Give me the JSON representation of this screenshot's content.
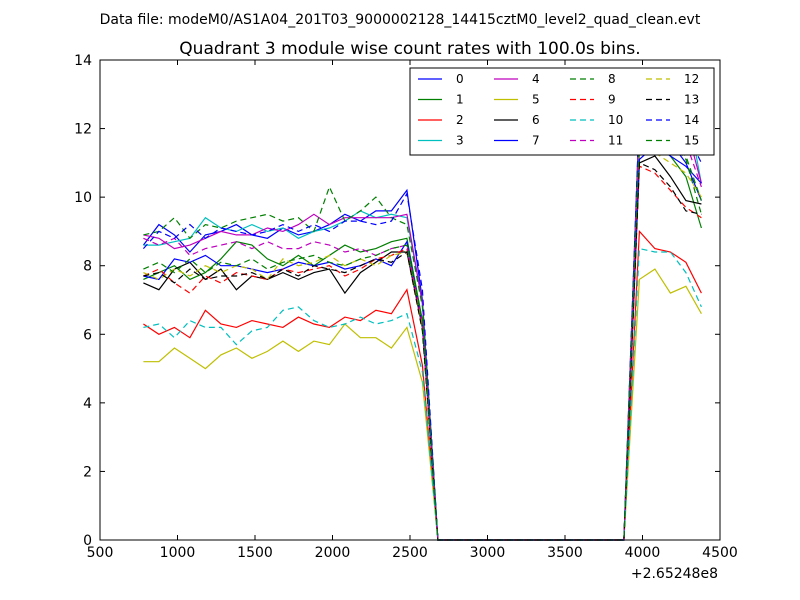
{
  "suptitle": "Data file: modeM0/AS1A04_201T03_9000002128_14415cztM0_level2_quad_clean.evt",
  "chart_data": {
    "type": "line",
    "title": "Quadrant 3 module wise count rates with 100.0s bins.",
    "xlabel": "",
    "ylabel": "",
    "x_offset_label": "+2.65248e8",
    "xlim": [
      500,
      4500
    ],
    "ylim": [
      0,
      14
    ],
    "xticks": [
      500,
      1000,
      1500,
      2000,
      2500,
      3000,
      3500,
      4000,
      4500
    ],
    "yticks": [
      0,
      2,
      4,
      6,
      8,
      10,
      12,
      14
    ],
    "grid": false,
    "legend_position": "top-right",
    "legend_columns": 4,
    "x": [
      780,
      880,
      980,
      1080,
      1180,
      1280,
      1380,
      1480,
      1580,
      1680,
      1780,
      1880,
      1980,
      2080,
      2180,
      2280,
      2380,
      2480,
      2580,
      2680,
      2780,
      2880,
      2980,
      3080,
      3180,
      3280,
      3380,
      3480,
      3580,
      3680,
      3780,
      3880,
      3980,
      4080,
      4180,
      4280,
      4380
    ],
    "series": [
      {
        "name": "0",
        "color": "#0000ff",
        "dash": "solid",
        "values": [
          8.6,
          9.2,
          8.9,
          8.4,
          8.9,
          9.0,
          9.2,
          8.9,
          8.8,
          9.1,
          8.9,
          9.0,
          9.2,
          9.5,
          9.3,
          9.6,
          9.6,
          10.2,
          7.0,
          0,
          0,
          0,
          0,
          0,
          0,
          0,
          0,
          0,
          0,
          0,
          0,
          0,
          11.3,
          11.8,
          11.6,
          11.0,
          9.9
        ]
      },
      {
        "name": "1",
        "color": "#007f00",
        "dash": "solid",
        "values": [
          7.6,
          7.8,
          8.0,
          7.6,
          7.8,
          8.2,
          8.7,
          8.6,
          8.2,
          8.0,
          8.3,
          8.0,
          8.3,
          8.6,
          8.4,
          8.5,
          8.7,
          8.8,
          6.4,
          0,
          0,
          0,
          0,
          0,
          0,
          0,
          0,
          0,
          0,
          0,
          0,
          0,
          11.6,
          11.5,
          11.2,
          10.6,
          9.1
        ]
      },
      {
        "name": "2",
        "color": "#ff0000",
        "dash": "solid",
        "values": [
          6.3,
          6.0,
          6.2,
          5.9,
          6.7,
          6.3,
          6.2,
          6.4,
          6.3,
          6.2,
          6.5,
          6.3,
          6.2,
          6.5,
          6.4,
          6.7,
          6.6,
          7.3,
          5.1,
          0,
          0,
          0,
          0,
          0,
          0,
          0,
          0,
          0,
          0,
          0,
          0,
          0,
          9.0,
          8.5,
          8.4,
          8.1,
          7.2
        ]
      },
      {
        "name": "3",
        "color": "#00bfbf",
        "dash": "solid",
        "values": [
          8.6,
          8.6,
          8.7,
          8.8,
          9.4,
          9.1,
          9.0,
          9.2,
          9.0,
          9.1,
          8.8,
          9.0,
          9.1,
          9.3,
          9.6,
          9.4,
          9.5,
          9.4,
          6.9,
          0,
          0,
          0,
          0,
          0,
          0,
          0,
          0,
          0,
          0,
          0,
          0,
          0,
          12.0,
          12.6,
          12.1,
          12.8,
          10.4
        ]
      },
      {
        "name": "4",
        "color": "#bf00bf",
        "dash": "solid",
        "values": [
          8.9,
          8.8,
          8.5,
          8.6,
          8.8,
          9.0,
          8.9,
          8.9,
          9.1,
          9.0,
          9.2,
          9.5,
          9.2,
          9.4,
          9.4,
          9.4,
          9.4,
          9.5,
          6.9,
          0,
          0,
          0,
          0,
          0,
          0,
          0,
          0,
          0,
          0,
          0,
          0,
          0,
          12.5,
          12.2,
          12.0,
          12.1,
          10.4
        ]
      },
      {
        "name": "5",
        "color": "#bfbf00",
        "dash": "solid",
        "values": [
          5.2,
          5.2,
          5.6,
          5.3,
          5.0,
          5.4,
          5.6,
          5.3,
          5.5,
          5.8,
          5.5,
          5.8,
          5.7,
          6.3,
          5.9,
          5.9,
          5.6,
          6.2,
          4.6,
          0,
          0,
          0,
          0,
          0,
          0,
          0,
          0,
          0,
          0,
          0,
          0,
          0,
          7.6,
          7.9,
          7.2,
          7.4,
          6.6
        ]
      },
      {
        "name": "6",
        "color": "#000000",
        "dash": "solid",
        "values": [
          7.5,
          7.3,
          7.9,
          8.1,
          7.6,
          7.9,
          7.3,
          7.7,
          7.6,
          7.8,
          7.6,
          7.8,
          7.9,
          7.2,
          7.8,
          8.1,
          8.4,
          8.4,
          6.2,
          0,
          0,
          0,
          0,
          0,
          0,
          0,
          0,
          0,
          0,
          0,
          0,
          0,
          11.0,
          11.2,
          10.6,
          9.9,
          9.8
        ]
      },
      {
        "name": "7",
        "color": "#0000ff",
        "dash": "solid",
        "values": [
          7.7,
          7.6,
          8.2,
          8.1,
          8.3,
          8.0,
          8.0,
          7.9,
          7.8,
          7.9,
          8.1,
          8.0,
          8.1,
          7.9,
          8.0,
          8.2,
          8.0,
          8.7,
          6.3,
          0,
          0,
          0,
          0,
          0,
          0,
          0,
          0,
          0,
          0,
          0,
          0,
          0,
          11.1,
          11.5,
          11.2,
          10.9,
          10.4
        ]
      },
      {
        "name": "8",
        "color": "#007f00",
        "dash": "dashed",
        "values": [
          8.9,
          9.0,
          9.4,
          8.8,
          9.2,
          9.1,
          9.3,
          9.4,
          9.5,
          9.3,
          9.4,
          9.0,
          10.3,
          9.3,
          9.6,
          10.0,
          9.4,
          9.2,
          6.8,
          0,
          0,
          0,
          0,
          0,
          0,
          0,
          0,
          0,
          0,
          0,
          0,
          0,
          12.4,
          12.0,
          11.6,
          11.1,
          9.5
        ]
      },
      {
        "name": "9",
        "color": "#ff0000",
        "dash": "dashed",
        "values": [
          7.7,
          7.9,
          7.5,
          7.2,
          7.7,
          7.5,
          7.8,
          7.7,
          7.6,
          7.9,
          7.8,
          7.9,
          8.0,
          7.7,
          7.9,
          8.2,
          8.3,
          8.5,
          6.2,
          0,
          0,
          0,
          0,
          0,
          0,
          0,
          0,
          0,
          0,
          0,
          0,
          0,
          10.9,
          10.7,
          10.2,
          9.7,
          9.4
        ]
      },
      {
        "name": "10",
        "color": "#00bfbf",
        "dash": "dashed",
        "values": [
          6.2,
          6.3,
          5.9,
          6.4,
          6.2,
          6.2,
          5.7,
          6.1,
          6.2,
          6.7,
          6.8,
          6.4,
          6.2,
          6.3,
          6.5,
          6.3,
          6.4,
          6.6,
          4.9,
          0,
          0,
          0,
          0,
          0,
          0,
          0,
          0,
          0,
          0,
          0,
          0,
          0,
          8.5,
          8.4,
          8.4,
          7.8,
          6.8
        ]
      },
      {
        "name": "11",
        "color": "#bf00bf",
        "dash": "dashed",
        "values": [
          8.8,
          8.6,
          8.8,
          8.3,
          8.5,
          8.6,
          8.7,
          8.5,
          8.7,
          8.5,
          8.5,
          8.7,
          8.6,
          8.4,
          8.5,
          8.3,
          8.5,
          8.6,
          6.3,
          0,
          0,
          0,
          0,
          0,
          0,
          0,
          0,
          0,
          0,
          0,
          0,
          0,
          12.3,
          12.8,
          12.2,
          11.6,
          10.3
        ]
      },
      {
        "name": "12",
        "color": "#bfbf00",
        "dash": "dashed",
        "values": [
          7.8,
          7.6,
          7.9,
          7.7,
          8.0,
          7.8,
          8.0,
          7.9,
          7.6,
          8.2,
          8.0,
          8.1,
          8.3,
          8.0,
          8.2,
          8.0,
          8.3,
          8.4,
          6.2,
          0,
          0,
          0,
          0,
          0,
          0,
          0,
          0,
          0,
          0,
          0,
          0,
          0,
          11.5,
          11.3,
          11.0,
          10.7,
          10.0
        ]
      },
      {
        "name": "13",
        "color": "#000000",
        "dash": "dashed",
        "values": [
          7.7,
          7.8,
          7.5,
          7.9,
          7.6,
          7.7,
          7.7,
          7.8,
          7.6,
          7.9,
          7.7,
          8.0,
          7.9,
          7.8,
          8.0,
          8.2,
          8.1,
          8.4,
          6.1,
          0,
          0,
          0,
          0,
          0,
          0,
          0,
          0,
          0,
          0,
          0,
          0,
          0,
          11.0,
          10.8,
          10.3,
          9.6,
          9.5
        ]
      },
      {
        "name": "14",
        "color": "#0000ff",
        "dash": "dashed",
        "values": [
          8.5,
          9.0,
          8.8,
          9.2,
          8.8,
          9.1,
          9.0,
          8.9,
          9.0,
          9.2,
          9.0,
          9.2,
          9.0,
          9.3,
          9.3,
          9.2,
          9.3,
          10.1,
          7.3,
          0,
          0,
          0,
          0,
          0,
          0,
          0,
          0,
          0,
          0,
          0,
          0,
          0,
          12.5,
          12.9,
          12.3,
          11.9,
          11.0
        ]
      },
      {
        "name": "15",
        "color": "#007f00",
        "dash": "dashed",
        "values": [
          7.9,
          8.1,
          7.8,
          8.2,
          7.8,
          8.1,
          8.0,
          8.2,
          7.9,
          8.1,
          8.2,
          8.3,
          8.1,
          8.0,
          8.2,
          8.3,
          8.5,
          8.6,
          6.4,
          0,
          0,
          0,
          0,
          0,
          0,
          0,
          0,
          0,
          0,
          0,
          0,
          0,
          11.8,
          11.9,
          11.5,
          11.2,
          9.9
        ]
      }
    ]
  }
}
